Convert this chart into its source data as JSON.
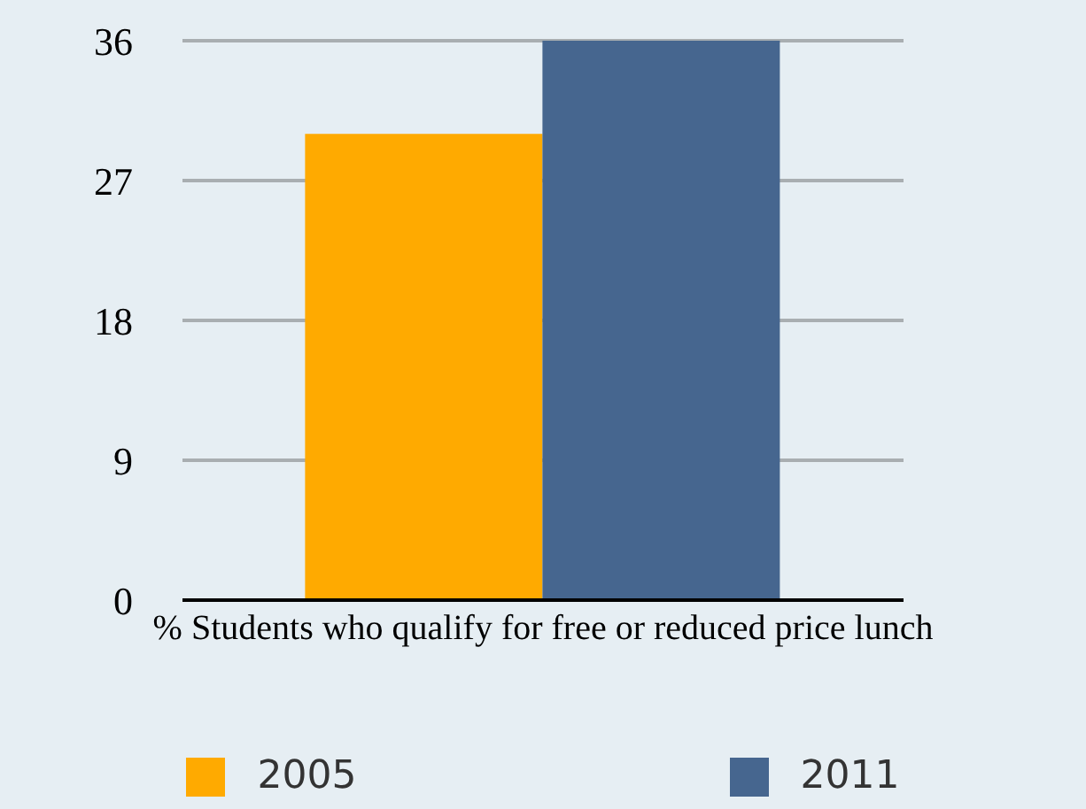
{
  "chart_data": {
    "type": "bar",
    "categories": [
      "% Students who qualify for free or reduced price lunch"
    ],
    "series": [
      {
        "name": "2005",
        "color": "#ffaa00",
        "values": [
          30
        ]
      },
      {
        "name": "2011",
        "color": "#46668f",
        "values": [
          36
        ]
      }
    ],
    "ylim": [
      0,
      36
    ],
    "yticks": [
      0,
      9,
      18,
      27,
      36
    ],
    "grid": "y",
    "legend": "bottom"
  }
}
